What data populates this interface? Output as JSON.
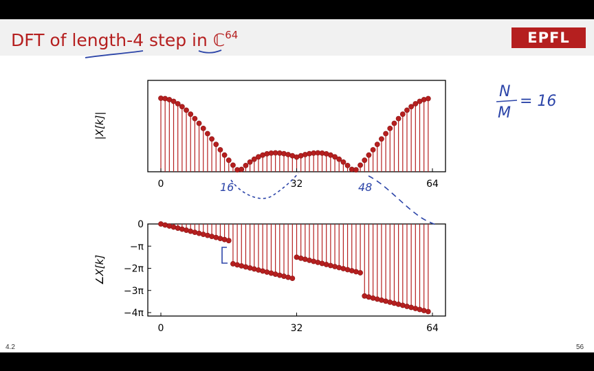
{
  "slide": {
    "title_parts": [
      "DFT of ",
      "length-4",
      " step in ",
      "ℂ",
      "64"
    ],
    "logo_text": "EPFL",
    "footer_left": "4.2",
    "footer_right": "56",
    "handwritten_note": [
      "N",
      "M",
      "= 16"
    ],
    "handwritten_marks": [
      "16",
      "48"
    ]
  },
  "chart_data": [
    {
      "type": "stem",
      "ylabel": "|X[k]|",
      "xlim": [
        0,
        64
      ],
      "ylim": [
        0,
        4
      ],
      "xticks": [
        0,
        32,
        64
      ],
      "xtick_labels": [
        "0",
        "32",
        "64"
      ],
      "color": "#b51f1f",
      "x": [
        0,
        1,
        2,
        3,
        4,
        5,
        6,
        7,
        8,
        9,
        10,
        11,
        12,
        13,
        14,
        15,
        16,
        17,
        18,
        19,
        20,
        21,
        22,
        23,
        24,
        25,
        26,
        27,
        28,
        29,
        30,
        31,
        32,
        33,
        34,
        35,
        36,
        37,
        38,
        39,
        40,
        41,
        42,
        43,
        44,
        45,
        46,
        47,
        48,
        49,
        50,
        51,
        52,
        53,
        54,
        55,
        56,
        57,
        58,
        59,
        60,
        61,
        62,
        63
      ],
      "values": [
        4,
        3.981,
        3.924,
        3.83,
        3.702,
        3.541,
        3.35,
        3.133,
        2.893,
        2.634,
        2.36,
        2.075,
        1.783,
        1.489,
        1.196,
        0.908,
        0.628,
        0.359,
        0.105,
        0.131,
        0.342,
        0.527,
        0.684,
        0.811,
        0.908,
        0.976,
        1.015,
        1.028,
        1.016,
        0.984,
        0.934,
        0.871,
        0.8,
        0.871,
        0.934,
        0.984,
        1.016,
        1.028,
        1.015,
        0.976,
        0.908,
        0.811,
        0.684,
        0.527,
        0.342,
        0.131,
        0.105,
        0.359,
        0.628,
        0.908,
        1.196,
        1.489,
        1.783,
        2.075,
        2.36,
        2.634,
        2.893,
        3.133,
        3.35,
        3.541,
        3.702,
        3.83,
        3.924,
        3.981
      ]
    },
    {
      "type": "stem",
      "ylabel": "∠X[k]",
      "xlim": [
        0,
        64
      ],
      "ylim": [
        -4.2,
        0
      ],
      "xticks": [
        0,
        32,
        64
      ],
      "xtick_labels": [
        "0",
        "32",
        "64"
      ],
      "yticks": [
        0,
        -1,
        -2,
        -3,
        -4
      ],
      "ytick_labels": [
        "0",
        "−π",
        "−2π",
        "−3π",
        "−4π"
      ],
      "ytick_unit": "π",
      "color": "#b51f1f",
      "x": [
        0,
        1,
        2,
        3,
        4,
        5,
        6,
        7,
        8,
        9,
        10,
        11,
        12,
        13,
        14,
        15,
        16,
        17,
        18,
        19,
        20,
        21,
        22,
        23,
        24,
        25,
        26,
        27,
        28,
        29,
        30,
        31,
        32,
        33,
        34,
        35,
        36,
        37,
        38,
        39,
        40,
        41,
        42,
        43,
        44,
        45,
        46,
        47,
        48,
        49,
        50,
        51,
        52,
        53,
        54,
        55,
        56,
        57,
        58,
        59,
        60,
        61,
        62,
        63
      ],
      "values": [
        0,
        -0.047,
        -0.094,
        -0.141,
        -0.188,
        -0.234,
        -0.281,
        -0.328,
        -0.375,
        -0.422,
        -0.469,
        -0.516,
        -0.563,
        -0.609,
        -0.656,
        -0.703,
        -0.75,
        -1.797,
        -1.844,
        -1.891,
        -1.938,
        -1.984,
        -2.031,
        -2.078,
        -2.125,
        -2.172,
        -2.219,
        -2.266,
        -2.313,
        -2.359,
        -2.406,
        -2.453,
        -1.5,
        -1.547,
        -1.594,
        -1.641,
        -1.688,
        -1.734,
        -1.781,
        -1.828,
        -1.875,
        -1.922,
        -1.969,
        -2.016,
        -2.063,
        -2.109,
        -2.156,
        -2.203,
        -3.25,
        -3.297,
        -3.344,
        -3.391,
        -3.438,
        -3.484,
        -3.531,
        -3.578,
        -3.625,
        -3.672,
        -3.719,
        -3.766,
        -3.813,
        -3.859,
        -3.906,
        -3.953
      ]
    }
  ]
}
